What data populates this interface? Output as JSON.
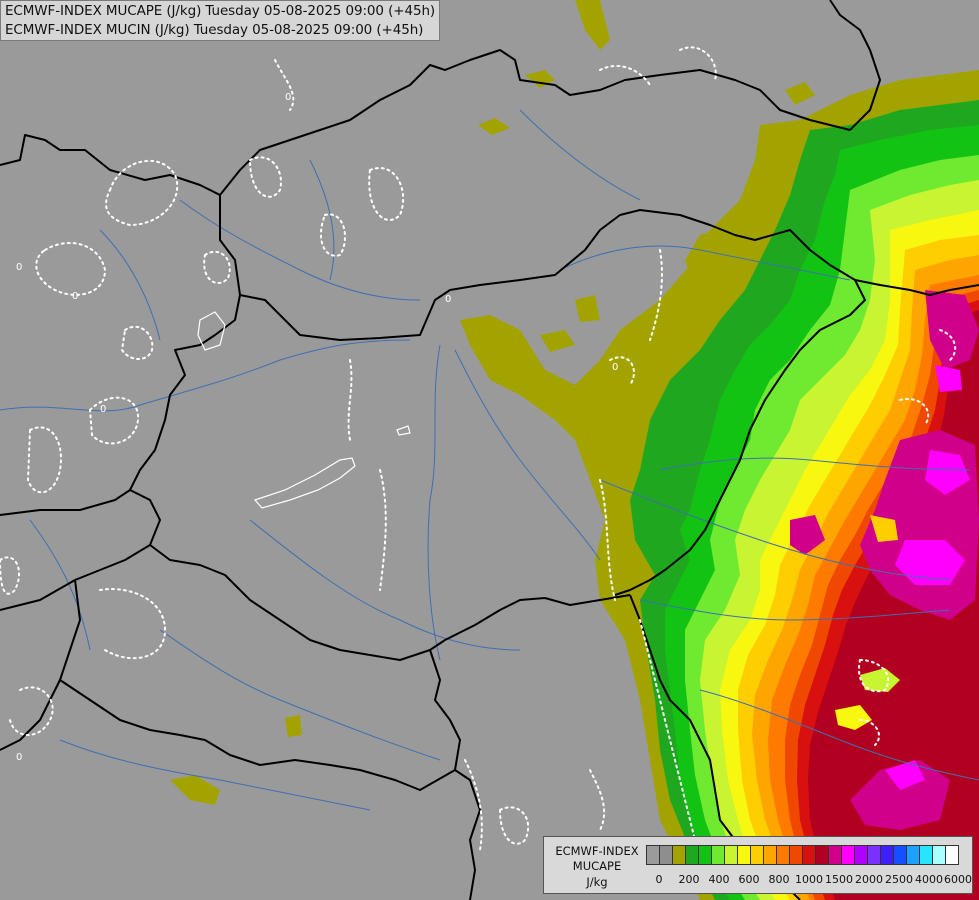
{
  "title": {
    "line1": "ECMWF-INDEX MUCAPE (J/kg) Tuesday 05-08-2025 09:00 (+45h)",
    "line2": "ECMWF-INDEX MUCIN (J/kg) Tuesday 05-08-2025 09:00 (+45h)"
  },
  "legend": {
    "line1": "ECMWF-INDEX",
    "line2": "MUCAPE",
    "line3": "J/kg",
    "colors": [
      "#9b9b9b",
      "#8e8e8e",
      "#a3a300",
      "#1fa81f",
      "#13c313",
      "#70ea31",
      "#c8f432",
      "#f7f710",
      "#ffce00",
      "#ffa500",
      "#ff7b00",
      "#f04800",
      "#d81010",
      "#b20020",
      "#d0008a",
      "#ff00ff",
      "#b000ff",
      "#7a30ff",
      "#3c1eff",
      "#1450ff",
      "#1ea0ff",
      "#28e4ff",
      "#aaffff",
      "#ffffff"
    ],
    "ticks": [
      "0",
      "200",
      "400",
      "600",
      "800",
      "1000",
      "1500",
      "2000",
      "2500",
      "4000",
      "6000"
    ]
  },
  "map": {
    "background_color": "#9a9a9a",
    "border_color": "#000000",
    "river_color": "#3f6fb0",
    "mucin_contour_color": "#ffffff",
    "contour_labels": [
      "0",
      "0",
      "0",
      "0",
      "0",
      "0",
      "0"
    ]
  }
}
